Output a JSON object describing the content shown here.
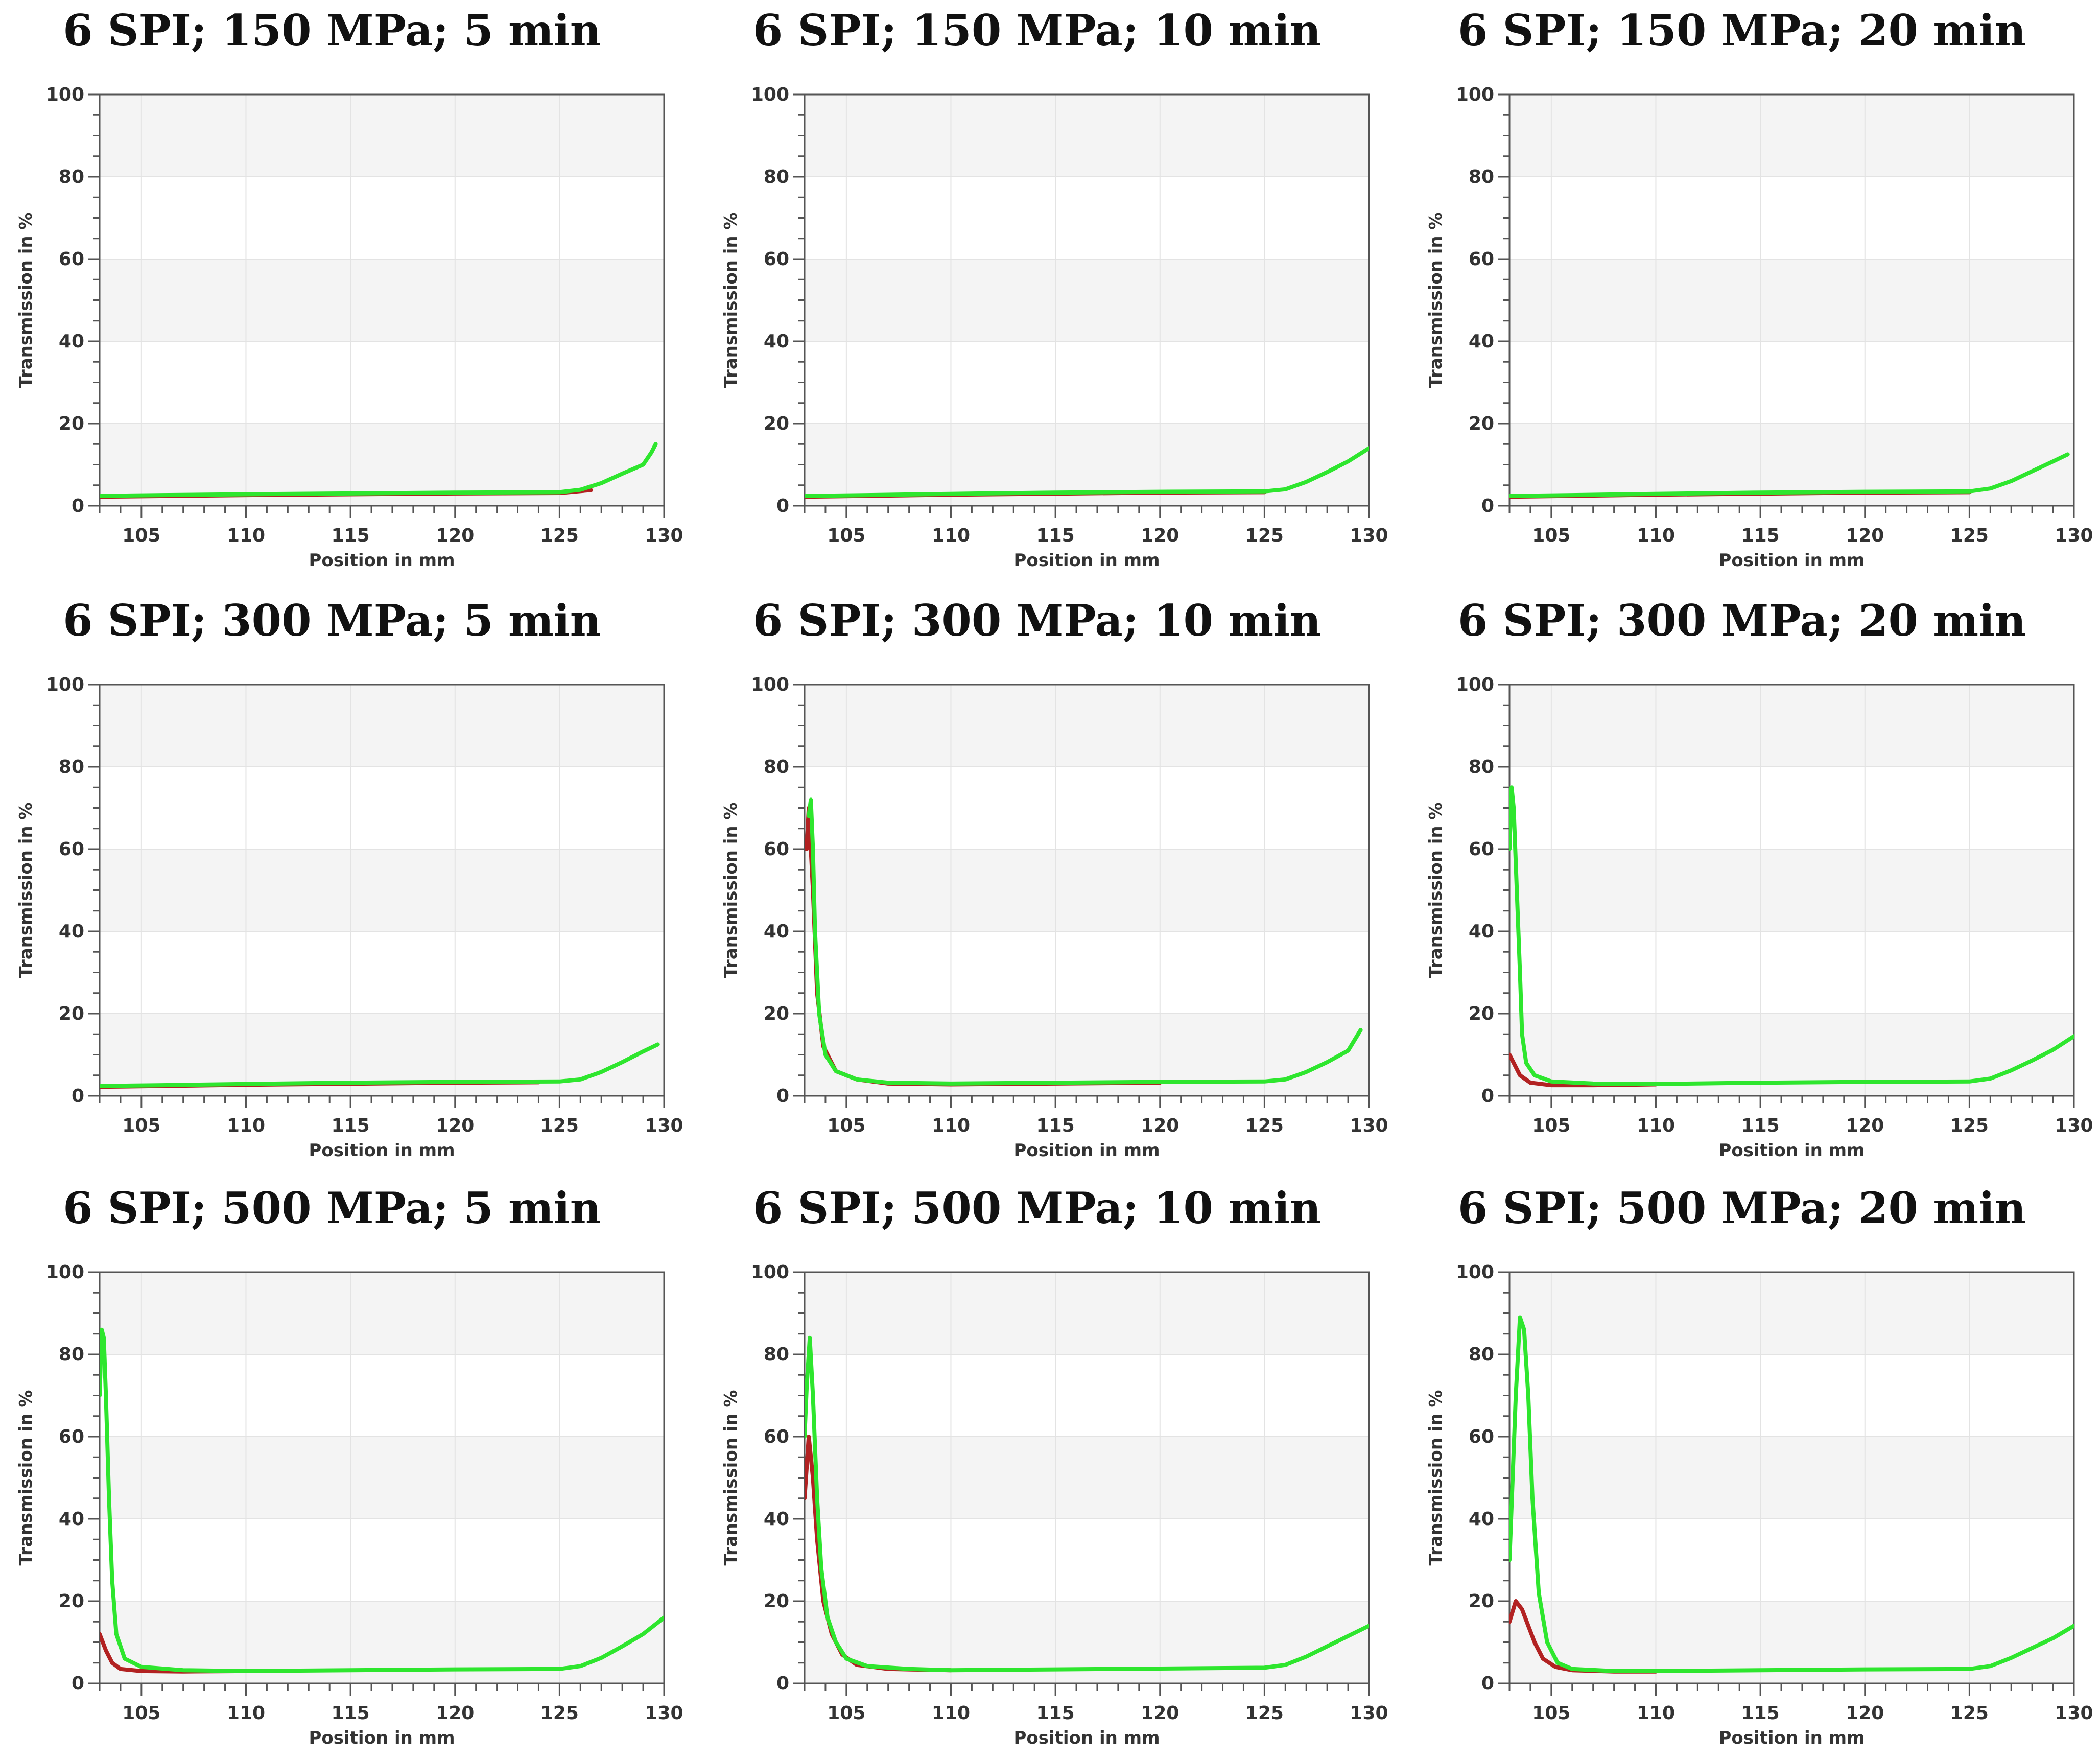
{
  "colors": {
    "green": "#2ee62e",
    "red": "#b22222",
    "band": "#f4f4f4",
    "grid": "#e3e3e3",
    "axis": "#555555"
  },
  "chart_data": [
    {
      "type": "line",
      "title": "6 SPI; 150 MPa; 5 min",
      "xlabel": "Position in mm",
      "ylabel": "Transmission in %",
      "xlim": [
        103,
        130
      ],
      "ylim": [
        0,
        100
      ],
      "xticks": [
        105,
        110,
        115,
        120,
        125,
        130
      ],
      "yticks": [
        0,
        20,
        40,
        60,
        80,
        100
      ],
      "grid": true,
      "series": [
        {
          "color": "#2ee62e",
          "x": [
            103,
            106,
            110,
            115,
            120,
            125,
            126,
            127,
            128,
            129,
            129.4,
            129.6
          ],
          "y": [
            2.4,
            2.6,
            2.8,
            3.0,
            3.2,
            3.3,
            3.9,
            5.5,
            7.8,
            10,
            13,
            15
          ]
        },
        {
          "color": "#b22222",
          "x": [
            103,
            110,
            120,
            125,
            126.5
          ],
          "y": [
            2.2,
            2.6,
            3.0,
            3.1,
            3.8
          ]
        }
      ]
    },
    {
      "type": "line",
      "title": "6 SPI; 150 MPa; 10 min",
      "xlabel": "Position in mm",
      "ylabel": "Transmission in %",
      "xlim": [
        103,
        130
      ],
      "ylim": [
        0,
        100
      ],
      "xticks": [
        105,
        110,
        115,
        120,
        125,
        130
      ],
      "yticks": [
        0,
        20,
        40,
        60,
        80,
        100
      ],
      "grid": true,
      "series": [
        {
          "color": "#2ee62e",
          "x": [
            103,
            106,
            110,
            115,
            120,
            125,
            126,
            127,
            128,
            129,
            130
          ],
          "y": [
            2.4,
            2.6,
            2.9,
            3.2,
            3.4,
            3.5,
            4.0,
            5.8,
            8.2,
            10.8,
            14
          ]
        },
        {
          "color": "#b22222",
          "x": [
            103,
            110,
            120,
            125
          ],
          "y": [
            2.2,
            2.7,
            3.2,
            3.3
          ]
        }
      ]
    },
    {
      "type": "line",
      "title": "6 SPI; 150 MPa; 20 min",
      "xlabel": "Position in mm",
      "ylabel": "Transmission in %",
      "xlim": [
        103,
        130
      ],
      "ylim": [
        0,
        100
      ],
      "xticks": [
        105,
        110,
        115,
        120,
        125,
        130
      ],
      "yticks": [
        0,
        20,
        40,
        60,
        80,
        100
      ],
      "grid": true,
      "series": [
        {
          "color": "#2ee62e",
          "x": [
            103,
            106,
            110,
            115,
            120,
            125,
            126,
            127,
            128,
            129,
            129.7
          ],
          "y": [
            2.4,
            2.6,
            2.9,
            3.2,
            3.4,
            3.5,
            4.2,
            6.0,
            8.4,
            10.8,
            12.5
          ]
        },
        {
          "color": "#b22222",
          "x": [
            103,
            110,
            120,
            125
          ],
          "y": [
            2.2,
            2.7,
            3.2,
            3.3
          ]
        }
      ]
    },
    {
      "type": "line",
      "title": "6 SPI; 300 MPa; 5 min",
      "xlabel": "Position in mm",
      "ylabel": "Transmission in %",
      "xlim": [
        103,
        130
      ],
      "ylim": [
        0,
        100
      ],
      "xticks": [
        105,
        110,
        115,
        120,
        125,
        130
      ],
      "yticks": [
        0,
        20,
        40,
        60,
        80,
        100
      ],
      "grid": true,
      "series": [
        {
          "color": "#2ee62e",
          "x": [
            103,
            106,
            110,
            115,
            120,
            125,
            126,
            127,
            128,
            129,
            129.7
          ],
          "y": [
            2.4,
            2.6,
            2.9,
            3.2,
            3.4,
            3.5,
            4.0,
            5.8,
            8.2,
            10.8,
            12.5
          ]
        },
        {
          "color": "#b22222",
          "x": [
            103,
            110,
            120,
            124
          ],
          "y": [
            2.2,
            2.7,
            3.2,
            3.3
          ]
        }
      ]
    },
    {
      "type": "line",
      "title": "6 SPI; 300 MPa; 10 min",
      "xlabel": "Position in mm",
      "ylabel": "Transmission in %",
      "xlim": [
        103,
        130
      ],
      "ylim": [
        0,
        100
      ],
      "xticks": [
        105,
        110,
        115,
        120,
        125,
        130
      ],
      "yticks": [
        0,
        20,
        40,
        60,
        80,
        100
      ],
      "grid": true,
      "series": [
        {
          "color": "#2ee62e",
          "x": [
            103.2,
            103.3,
            103.4,
            103.5,
            103.7,
            104,
            104.5,
            105.5,
            107,
            110,
            115,
            120,
            125,
            126,
            127,
            128,
            129,
            129.6
          ],
          "y": [
            68,
            72,
            60,
            40,
            20,
            10,
            6,
            4,
            3.2,
            3.0,
            3.2,
            3.4,
            3.5,
            4.0,
            5.8,
            8.2,
            11,
            16
          ]
        },
        {
          "color": "#b22222",
          "x": [
            103.1,
            103.2,
            103.4,
            103.6,
            103.9,
            104.5,
            105.5,
            107,
            110,
            120
          ],
          "y": [
            60,
            70,
            50,
            25,
            12,
            6,
            4,
            3.0,
            2.8,
            3.2
          ]
        }
      ]
    },
    {
      "type": "line",
      "title": "6 SPI; 300 MPa; 20 min",
      "xlabel": "Position in mm",
      "ylabel": "Transmission in %",
      "xlim": [
        103,
        130
      ],
      "ylim": [
        0,
        100
      ],
      "xticks": [
        105,
        110,
        115,
        120,
        125,
        130
      ],
      "yticks": [
        0,
        20,
        40,
        60,
        80,
        100
      ],
      "grid": true,
      "series": [
        {
          "color": "#2ee62e",
          "x": [
            103.0,
            103.1,
            103.2,
            103.35,
            103.5,
            103.6,
            103.8,
            104.2,
            105,
            107,
            110,
            115,
            120,
            125,
            126,
            127,
            128,
            129,
            130
          ],
          "y": [
            60,
            75,
            70,
            50,
            30,
            15,
            8,
            5,
            3.5,
            3.0,
            2.9,
            3.2,
            3.4,
            3.5,
            4.2,
            6.2,
            8.6,
            11.2,
            14.5
          ]
        },
        {
          "color": "#b22222",
          "x": [
            103.0,
            103.2,
            103.5,
            104,
            105,
            107,
            110
          ],
          "y": [
            10,
            8,
            5,
            3.2,
            2.6,
            2.6,
            2.8
          ]
        }
      ]
    },
    {
      "type": "line",
      "title": "6 SPI; 500 MPa; 5 min",
      "xlabel": "Position in mm",
      "ylabel": "Transmission in %",
      "xlim": [
        103,
        130
      ],
      "ylim": [
        0,
        100
      ],
      "xticks": [
        105,
        110,
        115,
        120,
        125,
        130
      ],
      "yticks": [
        0,
        20,
        40,
        60,
        80,
        100
      ],
      "grid": true,
      "series": [
        {
          "color": "#2ee62e",
          "x": [
            103.0,
            103.1,
            103.2,
            103.3,
            103.45,
            103.6,
            103.8,
            104.2,
            105,
            107,
            110,
            115,
            120,
            125,
            126,
            127,
            128,
            129,
            130
          ],
          "y": [
            70,
            86,
            84,
            70,
            45,
            25,
            12,
            6,
            4,
            3.2,
            3.0,
            3.2,
            3.4,
            3.5,
            4.2,
            6.2,
            9,
            12,
            16
          ]
        },
        {
          "color": "#b22222",
          "x": [
            103.0,
            103.3,
            103.6,
            104,
            105,
            107,
            110
          ],
          "y": [
            12,
            8,
            5,
            3.5,
            3.0,
            2.9,
            3.0
          ]
        }
      ]
    },
    {
      "type": "line",
      "title": "6 SPI; 500 MPa; 10 min",
      "xlabel": "Position in mm",
      "ylabel": "Transmission in %",
      "xlim": [
        103,
        130
      ],
      "ylim": [
        0,
        100
      ],
      "xticks": [
        105,
        110,
        115,
        120,
        125,
        130
      ],
      "yticks": [
        0,
        20,
        40,
        60,
        80,
        100
      ],
      "grid": true,
      "series": [
        {
          "color": "#2ee62e",
          "x": [
            103.0,
            103.1,
            103.25,
            103.4,
            103.6,
            103.8,
            104.1,
            104.5,
            105,
            106,
            108,
            110,
            115,
            120,
            125,
            126,
            127,
            128,
            129,
            130
          ],
          "y": [
            60,
            72,
            84,
            70,
            45,
            28,
            16,
            10,
            6,
            4.2,
            3.5,
            3.2,
            3.4,
            3.6,
            3.8,
            4.5,
            6.5,
            9,
            11.5,
            14
          ]
        },
        {
          "color": "#b22222",
          "x": [
            103.0,
            103.2,
            103.4,
            103.6,
            103.9,
            104.3,
            104.8,
            105.5,
            107,
            110
          ],
          "y": [
            45,
            60,
            50,
            35,
            20,
            12,
            7,
            4.5,
            3.5,
            3.2
          ]
        }
      ]
    },
    {
      "type": "line",
      "title": "6 SPI; 500 MPa; 20 min",
      "xlabel": "Position in mm",
      "ylabel": "Transmission in %",
      "xlim": [
        103,
        130
      ],
      "ylim": [
        0,
        100
      ],
      "xticks": [
        105,
        110,
        115,
        120,
        125,
        130
      ],
      "yticks": [
        0,
        20,
        40,
        60,
        80,
        100
      ],
      "grid": true,
      "series": [
        {
          "color": "#2ee62e",
          "x": [
            103.0,
            103.3,
            103.5,
            103.7,
            103.9,
            104.1,
            104.4,
            104.8,
            105.3,
            106,
            108,
            110,
            115,
            120,
            125,
            126,
            127,
            128,
            129,
            130
          ],
          "y": [
            30,
            70,
            89,
            86,
            70,
            45,
            22,
            10,
            5,
            3.5,
            3.0,
            3.0,
            3.2,
            3.4,
            3.5,
            4.2,
            6.2,
            8.6,
            11,
            14
          ]
        },
        {
          "color": "#b22222",
          "x": [
            103.0,
            103.3,
            103.6,
            103.9,
            104.2,
            104.6,
            105.2,
            106,
            108,
            110
          ],
          "y": [
            15,
            20,
            18,
            14,
            10,
            6,
            4,
            3.2,
            2.9,
            2.9
          ]
        }
      ]
    }
  ]
}
